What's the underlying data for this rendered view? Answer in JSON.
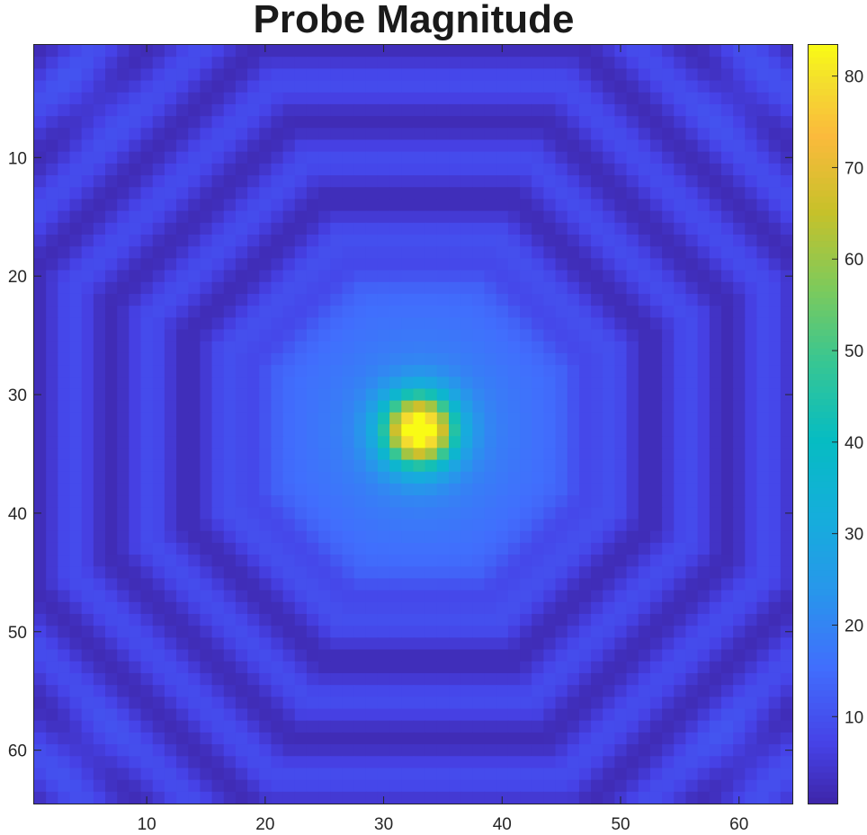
{
  "chart_data": {
    "type": "heatmap",
    "title": "Probe Magnitude",
    "xlabel": "",
    "ylabel": "",
    "x_range": [
      0.5,
      64.5
    ],
    "y_range": [
      0.5,
      64.5
    ],
    "y_direction": "reversed",
    "grid_size": [
      64,
      64
    ],
    "x_ticks": [
      10,
      20,
      30,
      40,
      50,
      60
    ],
    "y_ticks": [
      10,
      20,
      30,
      40,
      50,
      60
    ],
    "colormap": "parula",
    "colorbar": {
      "position": "right",
      "range": [
        0.5,
        83.5
      ],
      "ticks": [
        10,
        20,
        30,
        40,
        50,
        60,
        70,
        80
      ]
    },
    "peak": {
      "x": 33,
      "y": 33,
      "value": 83
    },
    "grid": false,
    "colors": {
      "low": "#3E26A8",
      "mid": "#2C9FE2",
      "teal": "#1AB8A6",
      "high": "#FBB93C",
      "max": "#F9FB15"
    }
  }
}
